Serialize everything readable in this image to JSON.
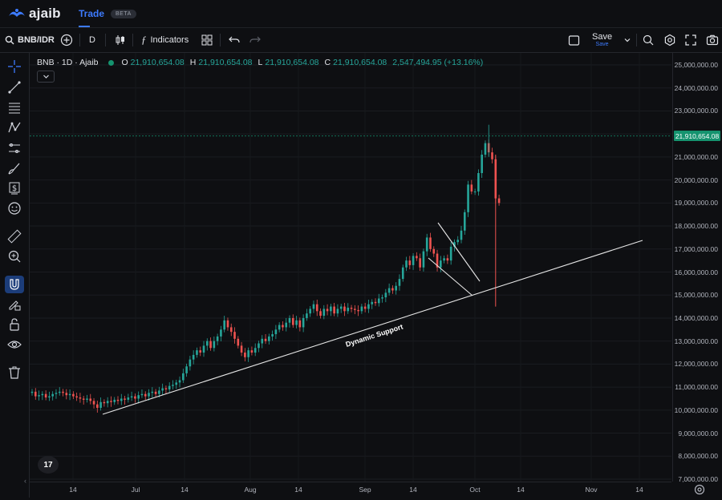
{
  "app": {
    "brand": "ajaib",
    "tab_trade": "Trade",
    "tab_badge": "BETA"
  },
  "toolbar": {
    "symbol": "BNB/IDR",
    "interval": "D",
    "indicators_label": "Indicators",
    "save_label": "Save",
    "save_sub": "Save"
  },
  "legend": {
    "title": "BNB · 1D · Ajaib",
    "o_key": "O",
    "o_val": "21,910,654.08",
    "h_key": "H",
    "h_val": "21,910,654.08",
    "l_key": "L",
    "l_val": "21,910,654.08",
    "c_key": "C",
    "c_val": "21,910,654.08",
    "change": "2,547,494.95 (+13.16%)"
  },
  "last_price_label": "21,910,654.08",
  "annotation_text": "Dynamic Support",
  "colors": {
    "up": "#26a69a",
    "down": "#ef5350",
    "accent": "#3d7bff",
    "last_price": "#15936f"
  },
  "chart_data": {
    "type": "candlestick",
    "symbol": "BNB/IDR",
    "interval": "1D",
    "y_ticks": [
      "25,000,000.00",
      "24,000,000.00",
      "23,000,000.00",
      "22,000,000.00",
      "21,000,000.00",
      "20,000,000.00",
      "19,000,000.00",
      "18,000,000.00",
      "17,000,000.00",
      "16,000,000.00",
      "15,000,000.00",
      "14,000,000.00",
      "13,000,000.00",
      "12,000,000.00",
      "11,000,000.00",
      "10,000,000.00",
      "9,000,000.00",
      "8,000,000.00",
      "7,000,000.00"
    ],
    "x_ticks": [
      "14",
      "Jul",
      "14",
      "Aug",
      "14",
      "Sep",
      "14",
      "Oct",
      "14",
      "Nov",
      "14"
    ],
    "ylim": [
      7000000,
      25000000
    ],
    "last_price": 21910654.08,
    "close_series": [
      10800000,
      10600000,
      10650000,
      10700000,
      10550000,
      10600000,
      10700000,
      10750000,
      10800000,
      10750000,
      10650000,
      10700000,
      10600000,
      10550000,
      10500000,
      10450000,
      10500000,
      10400000,
      10250000,
      10100000,
      10350000,
      10300000,
      10400000,
      10350000,
      10450000,
      10400000,
      10500000,
      10450000,
      10550000,
      10600000,
      10500000,
      10650000,
      10700000,
      10600000,
      10750000,
      10800000,
      10700000,
      10850000,
      10950000,
      10900000,
      11050000,
      11100000,
      11200000,
      11300000,
      11600000,
      11900000,
      12200000,
      12400000,
      12600000,
      12500000,
      12800000,
      13000000,
      12700000,
      13000000,
      13200000,
      13500000,
      13900000,
      13600000,
      13400000,
      13100000,
      12800000,
      12500000,
      12300000,
      12600000,
      12500000,
      12700000,
      12900000,
      13100000,
      13000000,
      13200000,
      13300000,
      13500000,
      13700000,
      13600000,
      13800000,
      14000000,
      13700000,
      13900000,
      13600000,
      14000000,
      14200000,
      14400000,
      14600000,
      14300000,
      14100000,
      14400000,
      14300000,
      14500000,
      14200000,
      14400000,
      14500000,
      14300000,
      14450000,
      14400000,
      14350000,
      14300000,
      14500000,
      14400000,
      14600000,
      14700000,
      14650000,
      14850000,
      14900000,
      15100000,
      15300000,
      15200000,
      15400000,
      15700000,
      16200000,
      16500000,
      16300000,
      16700000,
      16600000,
      16200000,
      16900000,
      17500000,
      17000000,
      16800000,
      16200000,
      16500000,
      16600000,
      16500000,
      17100000,
      17300000,
      17400000,
      17800000,
      18600000,
      19800000,
      19500000,
      19500000,
      20300000,
      21100000,
      21600000,
      21200000,
      20900000,
      19200000,
      19000000
    ],
    "annotations": [
      {
        "type": "trendline",
        "label": "Dynamic Support",
        "from": {
          "x": "Jun ~22",
          "y": 9800000
        },
        "to": {
          "x": "Nov ~14",
          "y": 17300000
        }
      },
      {
        "type": "trendline",
        "label": "",
        "from": {
          "x": "Sep ~20",
          "y": 18100000
        },
        "to": {
          "x": "Oct ~2",
          "y": 15700000
        }
      },
      {
        "type": "trendline",
        "label": "",
        "from": {
          "x": "Sep ~17",
          "y": 16900000
        },
        "to": {
          "x": "Sep ~30",
          "y": 14900000
        }
      }
    ]
  }
}
